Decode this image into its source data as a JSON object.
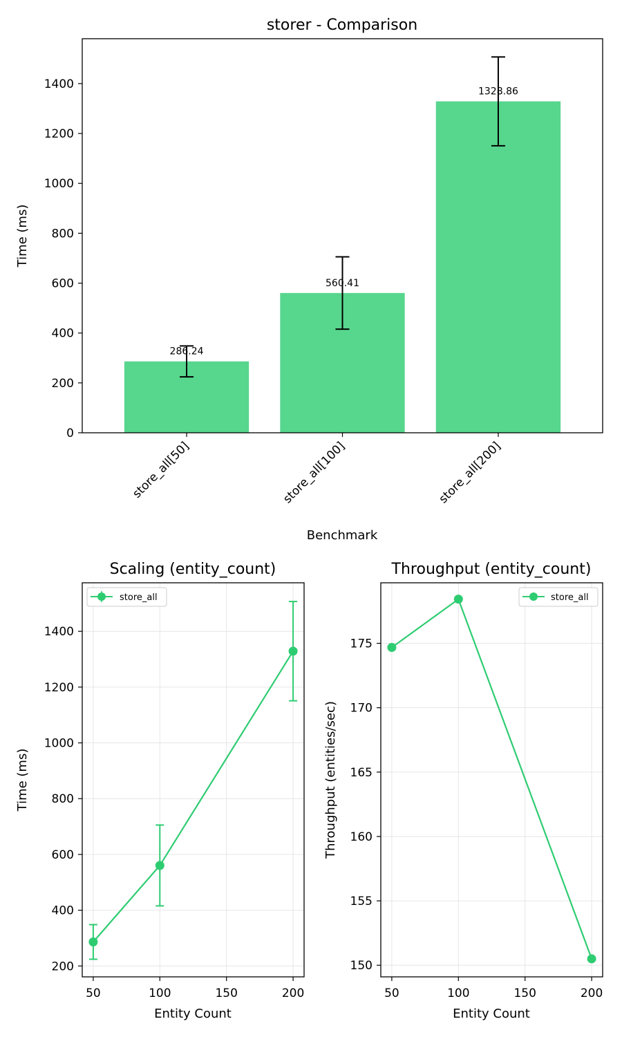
{
  "colors": {
    "accent": "#57d68d",
    "line": "#2ecc71",
    "grid": "#e6e6e6",
    "axis": "#000000"
  },
  "chart_data": [
    {
      "type": "bar",
      "title": "storer - Comparison",
      "xlabel": "Benchmark",
      "ylabel": "Time (ms)",
      "ylim": [
        0,
        1580
      ],
      "yticks": [
        0,
        200,
        400,
        600,
        800,
        1000,
        1200,
        1400
      ],
      "categories": [
        "store_all[50]",
        "store_all[100]",
        "store_all[200]"
      ],
      "values": [
        286.24,
        560.41,
        1328.86
      ],
      "value_labels": [
        "286.24",
        "560.41",
        "1328.86"
      ],
      "errors": [
        62,
        145,
        178
      ],
      "grid": false
    },
    {
      "type": "line",
      "title": "Scaling (entity_count)",
      "xlabel": "Entity Count",
      "ylabel": "Time (ms)",
      "xlim": [
        41.75,
        208.25
      ],
      "ylim": [
        161,
        1574
      ],
      "xticks": [
        50,
        100,
        150,
        200
      ],
      "yticks": [
        200,
        400,
        600,
        800,
        1000,
        1200,
        1400
      ],
      "grid": true,
      "legend": "top-left",
      "series": [
        {
          "name": "store_all",
          "x": [
            50,
            100,
            200
          ],
          "y": [
            286.24,
            560.41,
            1328.86
          ],
          "err": [
            62,
            145,
            178
          ]
        }
      ]
    },
    {
      "type": "line",
      "title": "Throughput (entity_count)",
      "xlabel": "Entity Count",
      "ylabel": "Throughput (entities/sec)",
      "xlim": [
        41.75,
        208.25
      ],
      "ylim": [
        149.1,
        179.7
      ],
      "xticks": [
        50,
        100,
        150,
        200
      ],
      "yticks": [
        150,
        155,
        160,
        165,
        170,
        175
      ],
      "grid": true,
      "legend": "top-right",
      "series": [
        {
          "name": "store_all",
          "x": [
            50,
            100,
            200
          ],
          "y": [
            174.68,
            178.43,
            150.5
          ]
        }
      ]
    }
  ]
}
